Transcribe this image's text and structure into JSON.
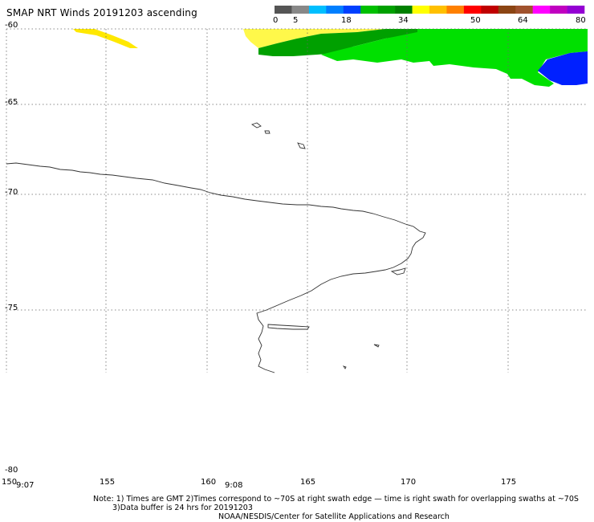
{
  "title": "SMAP NRT Winds 20191203 ascending",
  "colorbar": {
    "labels": [
      "0",
      "5",
      "18",
      "34",
      "50",
      "64",
      "80"
    ],
    "colors": [
      "#555555",
      "#888888",
      "#00bfff",
      "#007fff",
      "#0040ff",
      "#00c000",
      "#00a000",
      "#008000",
      "#ffff00",
      "#ffc000",
      "#ff8000",
      "#ff0000",
      "#c00000",
      "#8b4513",
      "#a0522d",
      "#ff00ff",
      "#c000c0",
      "#9400d3"
    ]
  },
  "lat_labels": [
    "-60",
    "-65",
    "-70",
    "-75",
    "-80"
  ],
  "lon_labels": [
    "150",
    "155",
    "160",
    "165",
    "170",
    "175"
  ],
  "time_labels": [
    "9:07",
    "9:08"
  ],
  "notes": {
    "line1": "Note: 1) Times are GMT 2)Times correspond to ~70S at right swath edge — time is right swath for overlapping swaths at ~70S",
    "line2": "3)Data buffer is 24 hrs for 20191203",
    "line3": "NOAA/NESDIS/Center for Satellite Applications and Research"
  },
  "swath_colors": {
    "yellow": "#ffe800",
    "light_yellow": "#fff84a",
    "dark_green": "#00a000",
    "green": "#00e000",
    "blue": "#0020ff"
  },
  "map_extent": {
    "lon_range": [
      150,
      180
    ],
    "lat_range": [
      -80,
      -60
    ]
  }
}
